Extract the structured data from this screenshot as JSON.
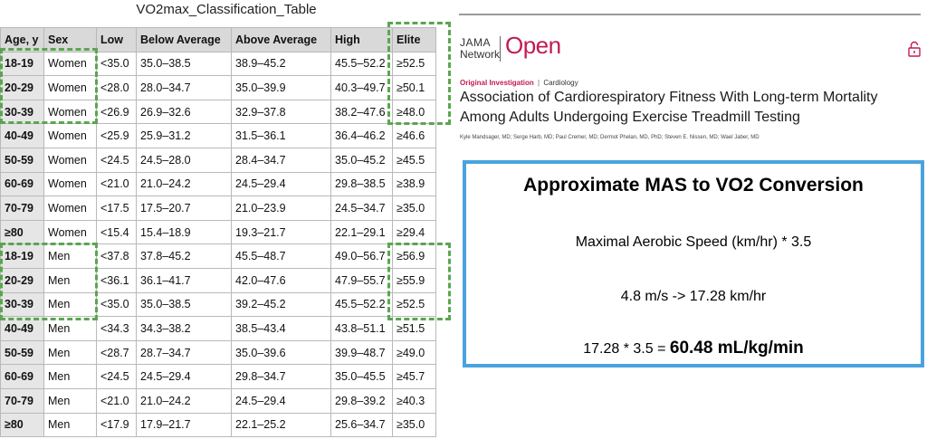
{
  "table": {
    "title": "VO2max_Classification_Table",
    "headers": [
      "Age, y",
      "Sex",
      "Low",
      "Below Average",
      "Above Average",
      "High",
      "Elite"
    ],
    "rows": [
      [
        "18-19",
        "Women",
        "<35.0",
        "35.0–38.5",
        "38.9–45.2",
        "45.5–52.2",
        "≥52.5"
      ],
      [
        "20-29",
        "Women",
        "<28.0",
        "28.0–34.7",
        "35.0–39.9",
        "40.3–49.7",
        "≥50.1"
      ],
      [
        "30-39",
        "Women",
        "<26.9",
        "26.9–32.6",
        "32.9–37.8",
        "38.2–47.6",
        "≥48.0"
      ],
      [
        "40-49",
        "Women",
        "<25.9",
        "25.9–31.2",
        "31.5–36.1",
        "36.4–46.2",
        "≥46.6"
      ],
      [
        "50-59",
        "Women",
        "<24.5",
        "24.5–28.0",
        "28.4–34.7",
        "35.0–45.2",
        "≥45.5"
      ],
      [
        "60-69",
        "Women",
        "<21.0",
        "21.0–24.2",
        "24.5–29.4",
        "29.8–38.5",
        "≥38.9"
      ],
      [
        "70-79",
        "Women",
        "<17.5",
        "17.5–20.7",
        "21.0–23.9",
        "24.5–34.7",
        "≥35.0"
      ],
      [
        "≥80",
        "Women",
        "<15.4",
        "15.4–18.9",
        "19.3–21.7",
        "22.1–29.1",
        "≥29.4"
      ],
      [
        "18-19",
        "Men",
        "<37.8",
        "37.8–45.2",
        "45.5–48.7",
        "49.0–56.7",
        "≥56.9"
      ],
      [
        "20-29",
        "Men",
        "<36.1",
        "36.1–41.7",
        "42.0–47.6",
        "47.9–55.7",
        "≥55.9"
      ],
      [
        "30-39",
        "Men",
        "<35.0",
        "35.0–38.5",
        "39.2–45.2",
        "45.5–52.2",
        "≥52.5"
      ],
      [
        "40-49",
        "Men",
        "<34.3",
        "34.3–38.2",
        "38.5–43.4",
        "43.8–51.1",
        "≥51.5"
      ],
      [
        "50-59",
        "Men",
        "<28.7",
        "28.7–34.7",
        "35.0–39.6",
        "39.9–48.7",
        "≥49.0"
      ],
      [
        "60-69",
        "Men",
        "<24.5",
        "24.5–29.4",
        "29.8–34.7",
        "35.0–45.5",
        "≥45.7"
      ],
      [
        "70-79",
        "Men",
        "<21.0",
        "21.0–24.2",
        "24.5–29.4",
        "29.8–39.2",
        "≥40.3"
      ],
      [
        "≥80",
        "Men",
        "<17.9",
        "17.9–21.7",
        "22.1–25.2",
        "25.6–34.7",
        "≥35.0"
      ]
    ]
  },
  "highlight_color": "#5aa650",
  "article": {
    "logo_top": "JAMA",
    "logo_bottom": "Network",
    "logo_open": "Open",
    "brand_color": "#c11b54",
    "lock_icon": "unlock-icon",
    "type": "Original Investigation",
    "separator": "|",
    "category": "Cardiology",
    "title": "Association of Cardiorespiratory Fitness With Long-term Mortality Among Adults Undergoing Exercise Treadmill Testing",
    "authors": "Kyle Mandsager, MD; Serge Harb, MD; Paul Cremer, MD; Dermot Phelan, MD, PhD; Steven E. Nissen, MD; Wael Jaber, MD"
  },
  "conversion": {
    "title": "Approximate MAS to VO2 Conversion",
    "formula": "Maximal Aerobic Speed (km/hr) * 3.5",
    "example": "4.8 m/s -> 17.28 km/hr",
    "calc_prefix": "17.28 * 3.5 = ",
    "calc_result": "60.48 mL/kg/min",
    "border_color": "#4aa3df"
  }
}
